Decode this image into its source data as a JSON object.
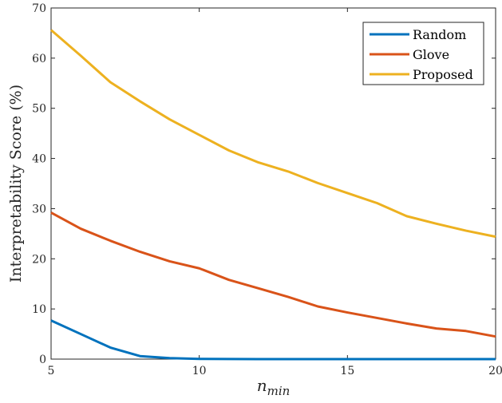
{
  "chart_data": {
    "type": "line",
    "xlabel": "n",
    "xlabel_subscript": "min",
    "ylabel": "Interpretability Score (%)",
    "xlim": [
      5,
      20
    ],
    "ylim": [
      0,
      70
    ],
    "xticks": [
      5,
      10,
      15,
      20
    ],
    "yticks": [
      0,
      10,
      20,
      30,
      40,
      50,
      60,
      70
    ],
    "grid": false,
    "legend_position": "top-right",
    "x": [
      5,
      6,
      7,
      8,
      9,
      10,
      11,
      12,
      13,
      14,
      15,
      16,
      17,
      18,
      19,
      20
    ],
    "series": [
      {
        "name": "Random",
        "color": "#0072BD",
        "values": [
          7.7,
          5.0,
          2.3,
          0.6,
          0.2,
          0.05,
          0.02,
          0.01,
          0.0,
          0.0,
          0.0,
          0.0,
          0.0,
          0.0,
          0.0,
          0.0
        ]
      },
      {
        "name": "Glove",
        "color": "#D95319",
        "values": [
          29.2,
          26.0,
          23.6,
          21.4,
          19.5,
          18.1,
          15.8,
          14.1,
          12.4,
          10.5,
          9.3,
          8.2,
          7.1,
          6.1,
          5.6,
          4.5
        ]
      },
      {
        "name": "Proposed",
        "color": "#EDB120",
        "values": [
          65.6,
          60.5,
          55.2,
          51.4,
          47.8,
          44.7,
          41.6,
          39.2,
          37.4,
          35.1,
          33.1,
          31.1,
          28.5,
          27.0,
          25.6,
          24.4
        ]
      }
    ]
  }
}
